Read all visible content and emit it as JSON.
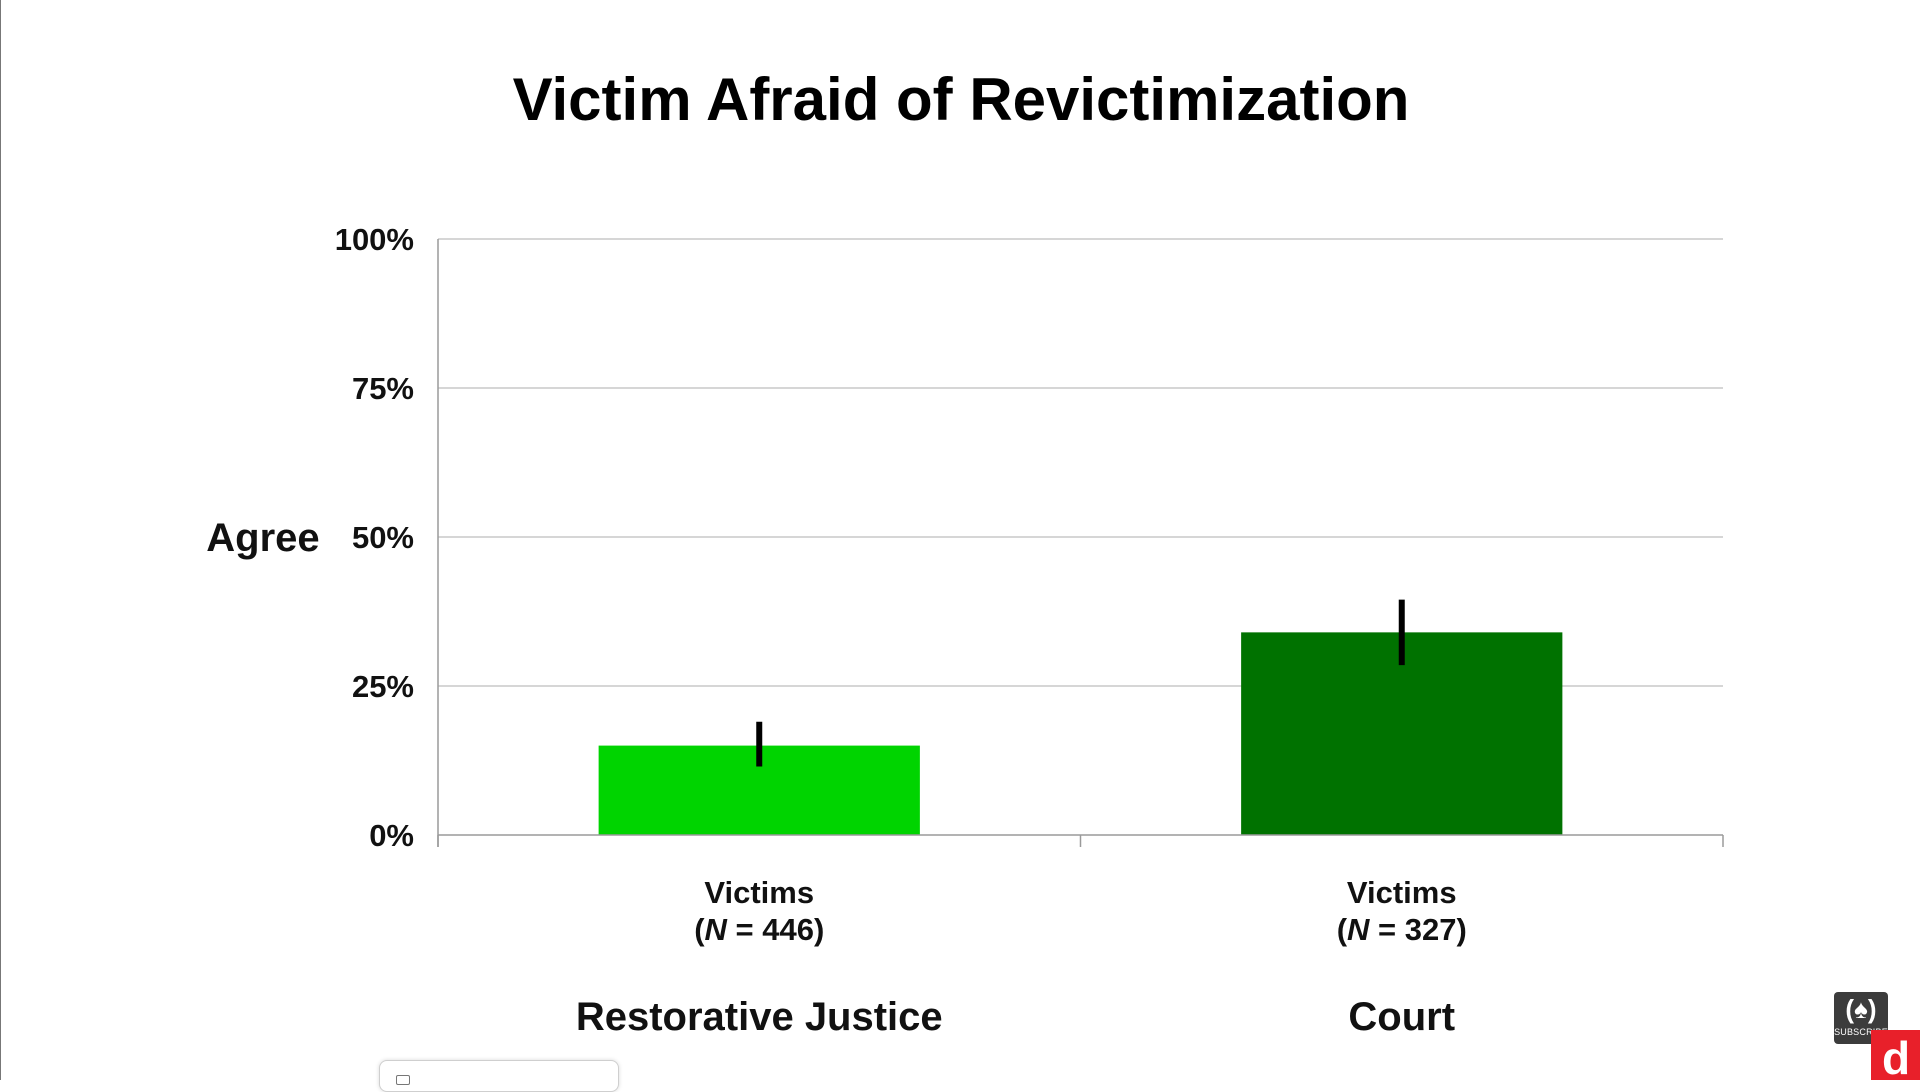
{
  "chart_data": {
    "type": "bar",
    "title": "Victim Afraid of Revictimization",
    "ylabel": "Agree",
    "xlabel": "",
    "ylim": [
      0,
      100
    ],
    "yticks": [
      "0%",
      "25%",
      "50%",
      "75%",
      "100%"
    ],
    "ytick_values": [
      0,
      25,
      50,
      75,
      100
    ],
    "grid": true,
    "categories": [
      {
        "name": "Victims",
        "n_label": "(N = 446)",
        "n_prefix": "(",
        "n_italic": "N",
        "n_suffix": " = 446)",
        "group": "Restorative Justice"
      },
      {
        "name": "Victims",
        "n_label": "(N = 327)",
        "n_prefix": "(",
        "n_italic": "N",
        "n_suffix": " = 327)",
        "group": "Court"
      }
    ],
    "values": [
      15,
      34
    ],
    "error_bars": [
      [
        11.5,
        19
      ],
      [
        28.5,
        39.5
      ]
    ],
    "colors": [
      "#00d400",
      "#007200"
    ]
  },
  "widgets": {
    "subscribe_label": "SUBSCRIBE",
    "subscribe_glyph": "(♠)",
    "logo_letter": "d"
  }
}
